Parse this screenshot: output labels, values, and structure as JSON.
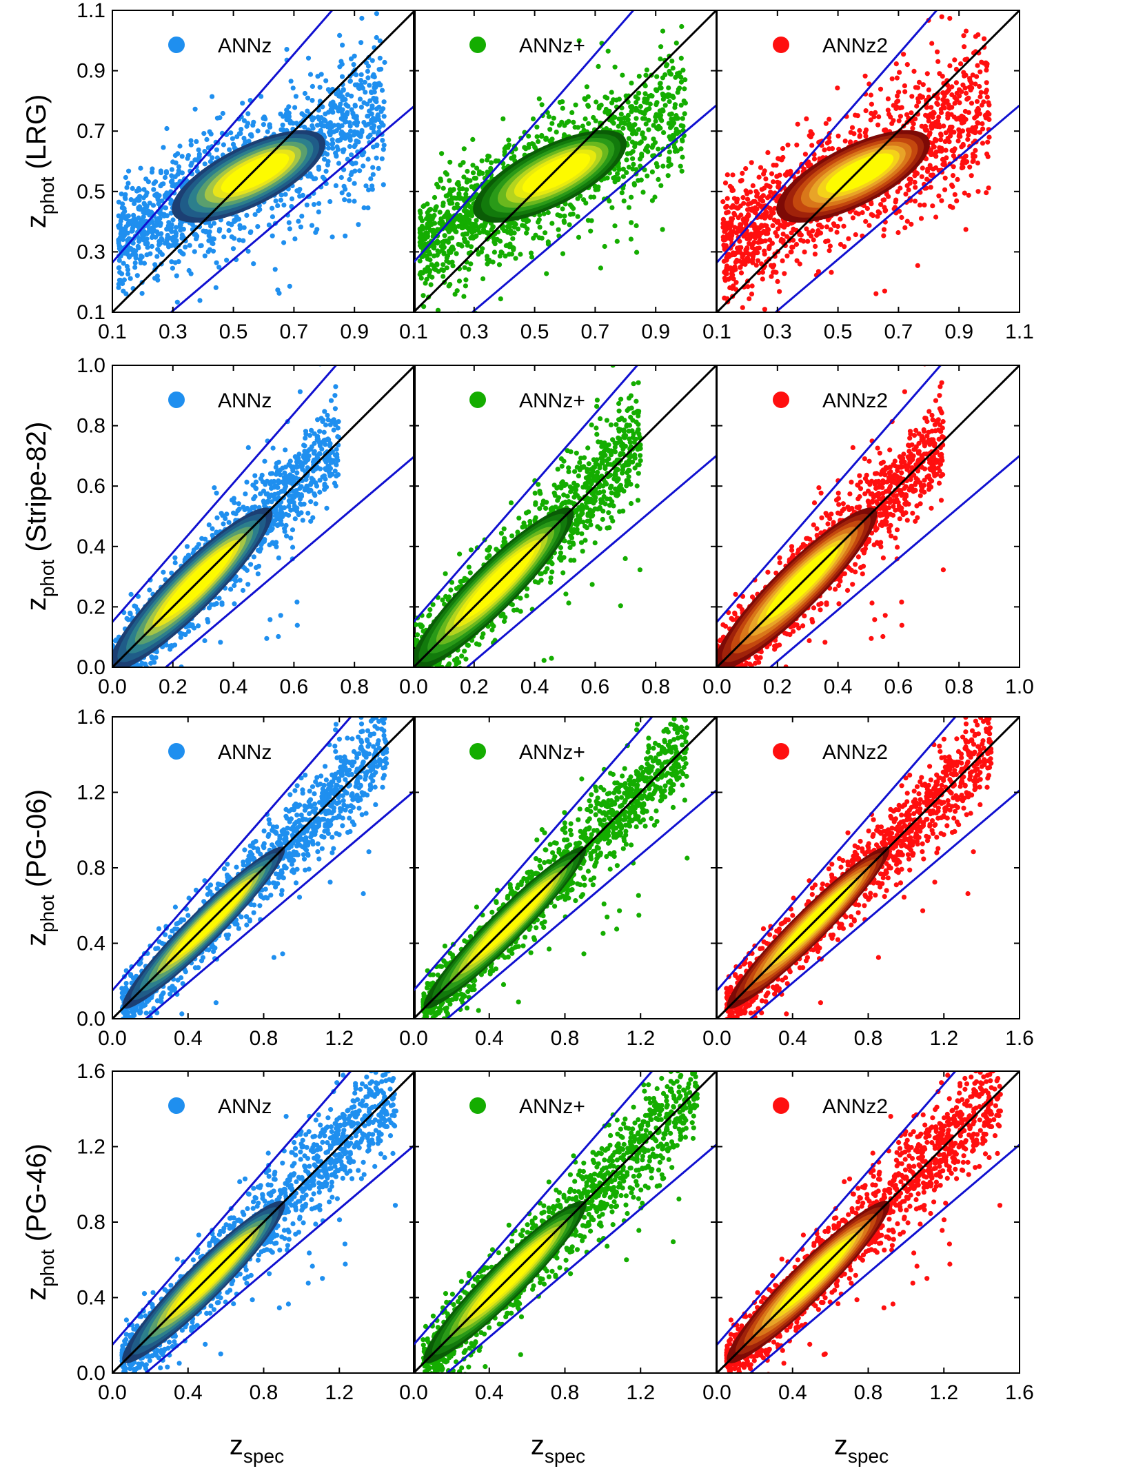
{
  "chart_data": {
    "type": "scatter",
    "title": "",
    "xlabel": {
      "main": "z",
      "sub": "spec"
    },
    "ylabel_prefix": {
      "main": "z",
      "sub": "phot"
    },
    "methods": [
      {
        "name": "ANNz",
        "color": "#1f8fef",
        "colormap": [
          "#1c3f73",
          "#1f5c88",
          "#2c7f8c",
          "#5a9f6e",
          "#a6c546",
          "#e8e41a",
          "#fdfa00"
        ]
      },
      {
        "name": "ANNz+",
        "color": "#14ad00",
        "colormap": [
          "#0a5c06",
          "#127a0c",
          "#2a9a18",
          "#6ab81e",
          "#b4d41f",
          "#e8ea0e",
          "#fdfa00"
        ]
      },
      {
        "name": "ANNz2",
        "color": "#ff0f0f",
        "colormap": [
          "#7d0a06",
          "#a0220a",
          "#c4480e",
          "#d9771a",
          "#e8a428",
          "#f4d21a",
          "#fdfa00"
        ]
      }
    ],
    "reference_lines": {
      "identity": {
        "description": "z_phot = z_spec",
        "color": "#000000"
      },
      "outlier_bounds": {
        "description": "z_phot = z_spec ± 0.15(1 + z_spec)",
        "color": "#1010d0"
      }
    },
    "rows": [
      {
        "sample": "LRG",
        "ylabel_suffix": "(LRG)",
        "xlim": [
          0.1,
          1.1
        ],
        "ylim": [
          0.1,
          1.1
        ],
        "xticks": [
          "0.1",
          "0.3",
          "0.5",
          "0.7",
          "0.9",
          "0.1",
          "0.3",
          "0.5",
          "0.7",
          "0.9",
          "0.1",
          "0.3",
          "0.5",
          "0.7",
          "0.9",
          "1.1"
        ],
        "yticks": [
          "0.1",
          "0.3",
          "0.5",
          "0.7",
          "0.9",
          "1.1"
        ],
        "xtick_values": [
          0.1,
          0.3,
          0.5,
          0.7,
          0.9
        ],
        "ytick_values": [
          0.1,
          0.3,
          0.5,
          0.7,
          0.9,
          1.1
        ],
        "core": {
          "x_range": [
            0.3,
            0.8
          ],
          "y_center": 0.55,
          "slope": 0.5,
          "scatter": 0.045
        },
        "spread": {
          "x_range": [
            0.12,
            1.0
          ],
          "scatter": 0.08
        }
      },
      {
        "sample": "Stripe-82",
        "ylabel_suffix": "(Stripe-82)",
        "xlim": [
          0.0,
          1.0
        ],
        "ylim": [
          0.0,
          1.0
        ],
        "xticks": [
          "0.0",
          "0.2",
          "0.4",
          "0.6",
          "0.8",
          "0.0",
          "0.2",
          "0.4",
          "0.6",
          "0.8",
          "0.0",
          "0.2",
          "0.4",
          "0.6",
          "0.8",
          "1.0"
        ],
        "yticks": [
          "0.0",
          "0.2",
          "0.4",
          "0.6",
          "0.8",
          "1.0"
        ],
        "xtick_values": [
          0.0,
          0.2,
          0.4,
          0.6,
          0.8
        ],
        "ytick_values": [
          0.0,
          0.2,
          0.4,
          0.6,
          0.8,
          1.0
        ],
        "core": {
          "x_range": [
            0.02,
            0.55
          ],
          "y_center": 0.28,
          "slope": 1.0,
          "scatter": 0.035
        },
        "spread": {
          "x_range": [
            0.0,
            0.75
          ],
          "scatter": 0.06
        }
      },
      {
        "sample": "PG-06",
        "ylabel_suffix": "(PG-06)",
        "xlim": [
          0.0,
          1.6
        ],
        "ylim": [
          0.0,
          1.6
        ],
        "xticks": [
          "0.0",
          "0.4",
          "0.8",
          "1.2",
          "0.0",
          "0.4",
          "0.8",
          "1.2",
          "0.0",
          "0.4",
          "0.8",
          "1.2",
          "1.6"
        ],
        "yticks": [
          "0.0",
          "0.4",
          "0.8",
          "1.2",
          "1.6"
        ],
        "xtick_values": [
          0.0,
          0.4,
          0.8,
          1.2
        ],
        "ytick_values": [
          0.0,
          0.4,
          0.8,
          1.2,
          1.6
        ],
        "core": {
          "x_range": [
            0.1,
            0.95
          ],
          "y_center": 0.5,
          "slope": 1.0,
          "scatter": 0.04
        },
        "spread": {
          "x_range": [
            0.05,
            1.45
          ],
          "scatter": 0.07
        }
      },
      {
        "sample": "PG-46",
        "ylabel_suffix": "(PG-46)",
        "xlim": [
          0.0,
          1.6
        ],
        "ylim": [
          0.0,
          1.6
        ],
        "xticks": [
          "0.0",
          "0.4",
          "0.8",
          "1.2",
          "0.0",
          "0.4",
          "0.8",
          "1.2",
          "0.0",
          "0.4",
          "0.8",
          "1.2",
          "1.6"
        ],
        "yticks": [
          "0.0",
          "0.4",
          "0.8",
          "1.2",
          "1.6"
        ],
        "xtick_values": [
          0.0,
          0.4,
          0.8,
          1.2
        ],
        "ytick_values": [
          0.0,
          0.4,
          0.8,
          1.2,
          1.6
        ],
        "core": {
          "x_range": [
            0.1,
            0.95
          ],
          "y_center": 0.52,
          "slope": 1.0,
          "scatter": 0.045
        },
        "spread": {
          "x_range": [
            0.05,
            1.5
          ],
          "scatter": 0.08
        }
      }
    ]
  }
}
